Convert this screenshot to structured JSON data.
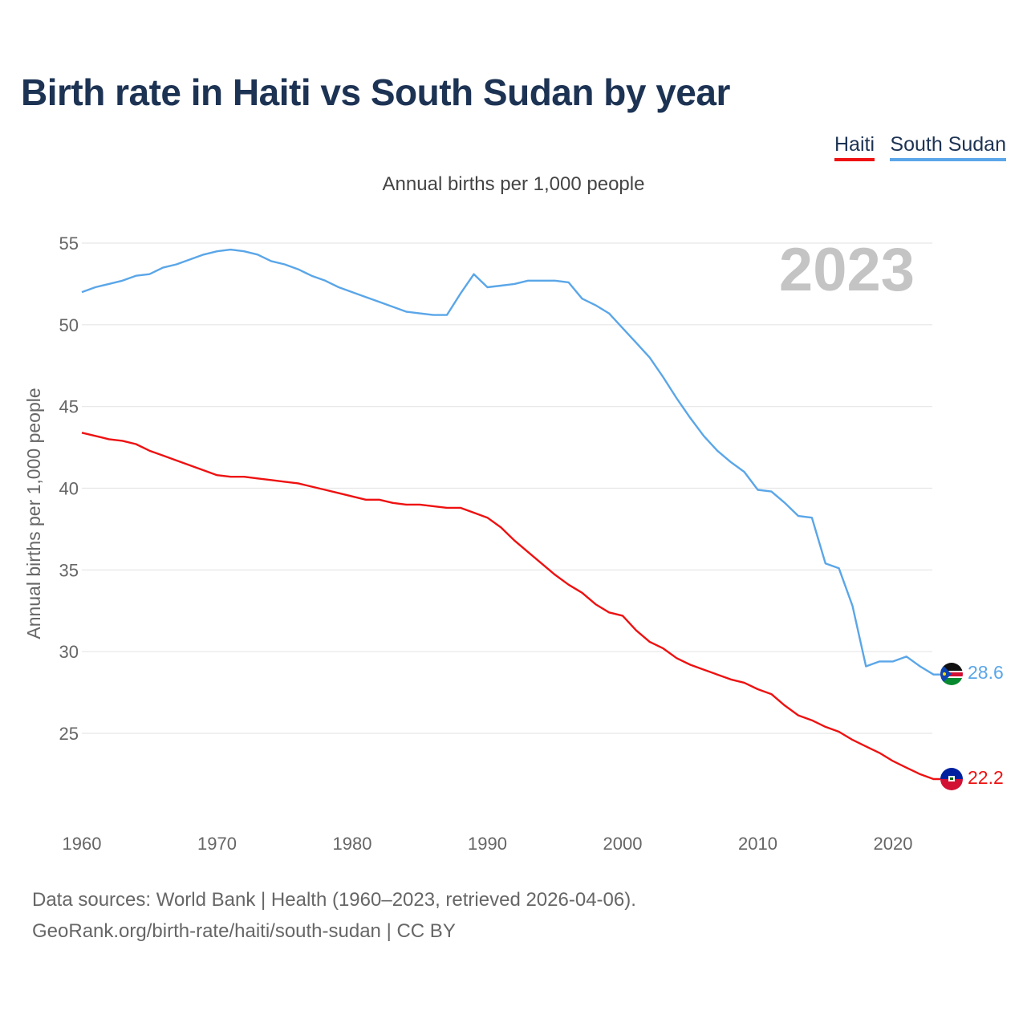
{
  "title": "Birth rate in Haiti vs South Sudan by year",
  "subtitle": "Annual births per 1,000 people",
  "legend": {
    "haiti": "Haiti",
    "south_sudan": "South Sudan"
  },
  "year_watermark": "2023",
  "end_labels": {
    "haiti": "22.2",
    "south_sudan": "28.6"
  },
  "source": {
    "line1": "Data sources: World Bank | Health (1960–2023, retrieved 2026-04-06).",
    "line2": "GeoRank.org/birth-rate/haiti/south-sudan | CC BY"
  },
  "colors": {
    "haiti": "#ee1111",
    "south_sudan": "#5aa6e8",
    "title": "#1d3354"
  },
  "chart_data": {
    "type": "line",
    "title": "Birth rate in Haiti vs South Sudan by year",
    "xlabel": "",
    "ylabel": "Annual births per 1,000 people",
    "xlim": [
      1960,
      2023
    ],
    "ylim": [
      20,
      56
    ],
    "x_ticks": [
      1960,
      1970,
      1980,
      1990,
      2000,
      2010,
      2020
    ],
    "y_ticks": [
      25,
      30,
      35,
      40,
      45,
      50,
      55
    ],
    "x": [
      1960,
      1961,
      1962,
      1963,
      1964,
      1965,
      1966,
      1967,
      1968,
      1969,
      1970,
      1971,
      1972,
      1973,
      1974,
      1975,
      1976,
      1977,
      1978,
      1979,
      1980,
      1981,
      1982,
      1983,
      1984,
      1985,
      1986,
      1987,
      1988,
      1989,
      1990,
      1991,
      1992,
      1993,
      1994,
      1995,
      1996,
      1997,
      1998,
      1999,
      2000,
      2001,
      2002,
      2003,
      2004,
      2005,
      2006,
      2007,
      2008,
      2009,
      2010,
      2011,
      2012,
      2013,
      2014,
      2015,
      2016,
      2017,
      2018,
      2019,
      2020,
      2021,
      2022,
      2023
    ],
    "series": [
      {
        "name": "Haiti",
        "color": "#ee1111",
        "values": [
          43.4,
          43.2,
          43.0,
          42.9,
          42.7,
          42.3,
          42.0,
          41.7,
          41.4,
          41.1,
          40.8,
          40.7,
          40.7,
          40.6,
          40.5,
          40.4,
          40.3,
          40.1,
          39.9,
          39.7,
          39.5,
          39.3,
          39.3,
          39.1,
          39.0,
          39.0,
          38.9,
          38.8,
          38.8,
          38.5,
          38.2,
          37.6,
          36.8,
          36.1,
          35.4,
          34.7,
          34.1,
          33.6,
          32.9,
          32.4,
          32.2,
          31.3,
          30.6,
          30.2,
          29.6,
          29.2,
          28.9,
          28.6,
          28.3,
          28.1,
          27.7,
          27.4,
          26.7,
          26.1,
          25.8,
          25.4,
          25.1,
          24.6,
          24.2,
          23.8,
          23.3,
          22.9,
          22.5,
          22.2
        ]
      },
      {
        "name": "South Sudan",
        "color": "#5aa6e8",
        "values": [
          52.0,
          52.3,
          52.5,
          52.7,
          53.0,
          53.1,
          53.5,
          53.7,
          54.0,
          54.3,
          54.5,
          54.6,
          54.5,
          54.3,
          53.9,
          53.7,
          53.4,
          53.0,
          52.7,
          52.3,
          52.0,
          51.7,
          51.4,
          51.1,
          50.8,
          50.7,
          50.6,
          50.6,
          51.9,
          53.1,
          52.3,
          52.4,
          52.5,
          52.7,
          52.7,
          52.7,
          52.6,
          51.6,
          51.2,
          50.7,
          49.8,
          48.9,
          48.0,
          46.8,
          45.5,
          44.3,
          43.2,
          42.3,
          41.6,
          41.0,
          39.9,
          39.8,
          39.1,
          38.3,
          38.2,
          35.4,
          35.1,
          32.8,
          29.1,
          29.4,
          29.4,
          29.7,
          29.1,
          28.6
        ]
      }
    ],
    "legend_position": "top-right"
  }
}
